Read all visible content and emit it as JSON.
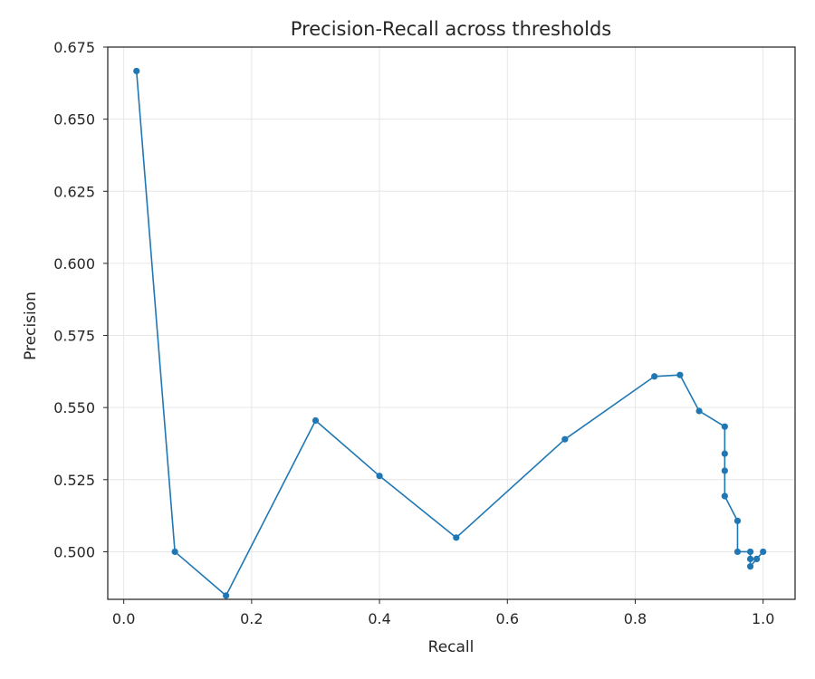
{
  "chart_data": {
    "type": "line",
    "title": "Precision-Recall across thresholds",
    "xlabel": "Recall",
    "ylabel": "Precision",
    "xlim": [
      -0.025,
      1.05
    ],
    "ylim": [
      0.4835,
      0.675
    ],
    "xticks": [
      0.0,
      0.2,
      0.4,
      0.6,
      0.8,
      1.0
    ],
    "xtick_labels": [
      "0.0",
      "0.2",
      "0.4",
      "0.6",
      "0.8",
      "1.0"
    ],
    "yticks": [
      0.5,
      0.525,
      0.55,
      0.575,
      0.6,
      0.625,
      0.65,
      0.675
    ],
    "ytick_labels": [
      "0.500",
      "0.525",
      "0.550",
      "0.575",
      "0.600",
      "0.625",
      "0.650",
      "0.675"
    ],
    "grid": true,
    "color": "#1f77b4",
    "series": [
      {
        "x": [
          0.02,
          0.08,
          0.16,
          0.3,
          0.4,
          0.52,
          0.69,
          0.83,
          0.87,
          0.9,
          0.94,
          0.94,
          0.94,
          0.94,
          0.96,
          0.96,
          0.98,
          0.98,
          0.98,
          0.99,
          1.0
        ],
        "y": [
          0.6667,
          0.5,
          0.4848,
          0.5455,
          0.5263,
          0.5049,
          0.539,
          0.5608,
          0.5613,
          0.5488,
          0.5434,
          0.534,
          0.5281,
          0.5193,
          0.5107,
          0.5,
          0.5,
          0.4975,
          0.4949,
          0.4975,
          0.5
        ]
      }
    ]
  }
}
